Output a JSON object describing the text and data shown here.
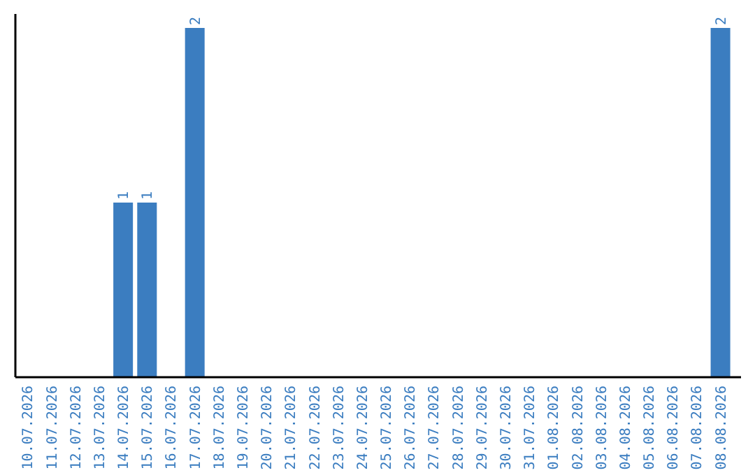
{
  "chart_data": {
    "type": "bar",
    "categories": [
      "10.07.2026",
      "11.07.2026",
      "12.07.2026",
      "13.07.2026",
      "14.07.2026",
      "15.07.2026",
      "16.07.2026",
      "17.07.2026",
      "18.07.2026",
      "19.07.2026",
      "20.07.2026",
      "21.07.2026",
      "22.07.2026",
      "23.07.2026",
      "24.07.2026",
      "25.07.2026",
      "26.07.2026",
      "27.07.2026",
      "28.07.2026",
      "29.07.2026",
      "30.07.2026",
      "31.07.2026",
      "01.08.2026",
      "02.08.2026",
      "03.08.2026",
      "04.08.2026",
      "05.08.2026",
      "06.08.2026",
      "07.08.2026",
      "08.08.2026"
    ],
    "values": [
      0,
      0,
      0,
      0,
      1,
      1,
      0,
      2,
      0,
      0,
      0,
      0,
      0,
      0,
      0,
      0,
      0,
      0,
      0,
      0,
      0,
      0,
      0,
      0,
      0,
      0,
      0,
      0,
      0,
      2
    ],
    "value_labels": [
      null,
      null,
      null,
      null,
      "1",
      "1",
      null,
      "2",
      null,
      null,
      null,
      null,
      null,
      null,
      null,
      null,
      null,
      null,
      null,
      null,
      null,
      null,
      null,
      null,
      null,
      null,
      null,
      null,
      null,
      "2"
    ],
    "color": "#3b7dc0"
  }
}
